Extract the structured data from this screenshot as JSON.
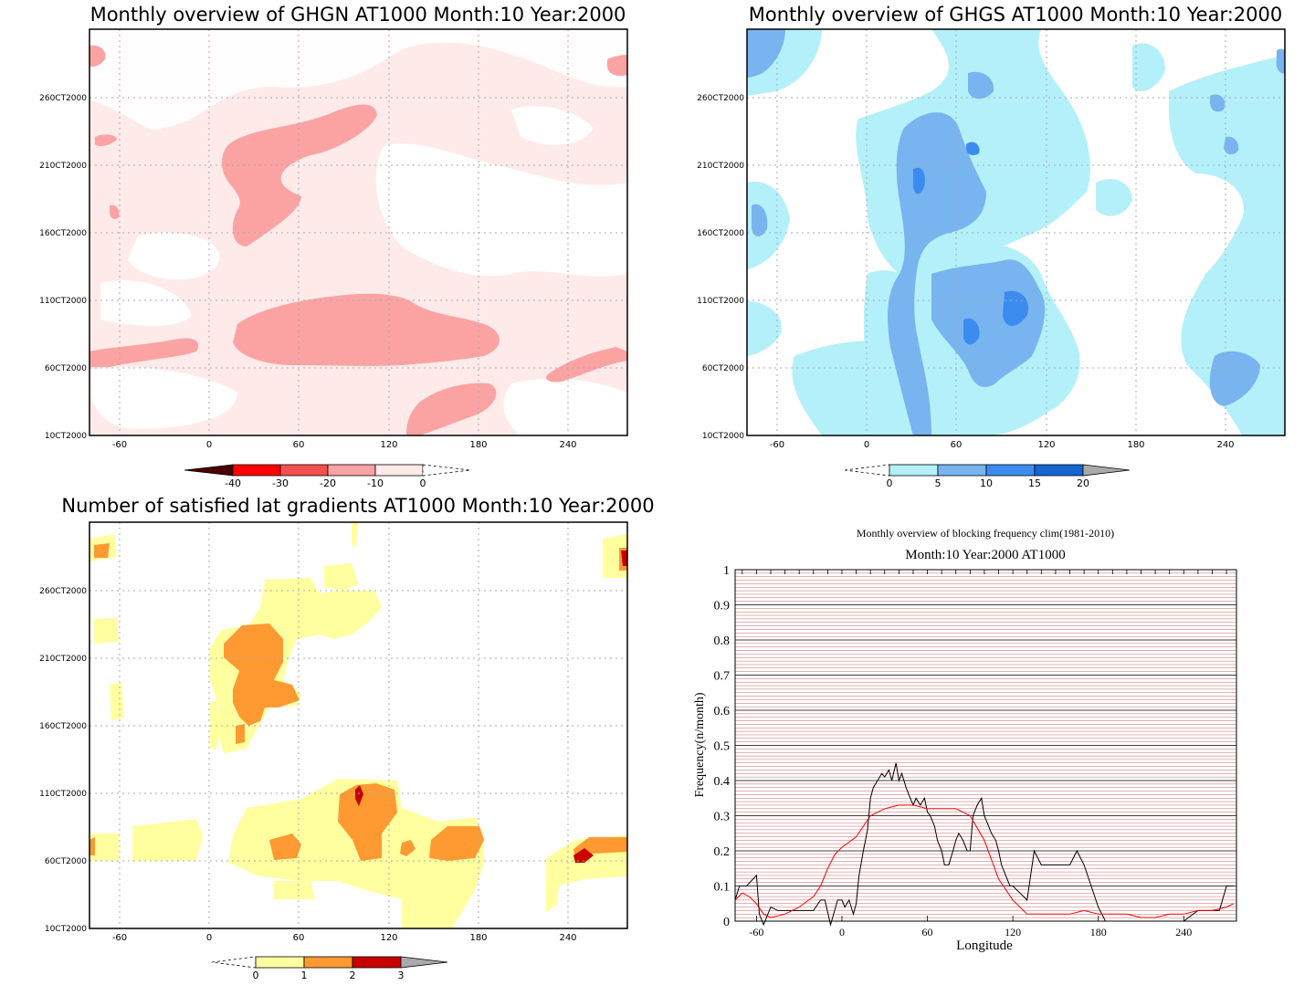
{
  "panels": {
    "ghgn": {
      "title": "Monthly overview of GHGN AT1000 Month:10 Year:2000",
      "y_ticks": [
        "260CT2000",
        "210CT2000",
        "160CT2000",
        "110CT2000",
        "60CT2000",
        "10CT2000"
      ],
      "x_ticks": [
        "-60",
        "0",
        "60",
        "120",
        "180",
        "240"
      ],
      "colorbar": {
        "labels": [
          "-40",
          "-30",
          "-20",
          "-10",
          "0"
        ],
        "colors": [
          "#b3000b",
          "#ff0000",
          "#f25050",
          "#fba3a3",
          "#ffeaea"
        ]
      }
    },
    "ghgs": {
      "title": "Monthly overview of GHGS AT1000 Month:10 Year:2000",
      "y_ticks": [
        "260CT2000",
        "210CT2000",
        "160CT2000",
        "110CT2000",
        "60CT2000",
        "10CT2000"
      ],
      "x_ticks": [
        "-60",
        "0",
        "60",
        "120",
        "180",
        "240"
      ],
      "colorbar": {
        "labels": [
          "0",
          "5",
          "10",
          "15",
          "20"
        ],
        "colors": [
          "#b4f0fa",
          "#78b4f0",
          "#3c8cf0",
          "#1464d2"
        ]
      }
    },
    "gradients": {
      "title": "Number of satisfied lat gradients AT1000 Month:10 Year:2000",
      "y_ticks": [
        "260CT2000",
        "210CT2000",
        "160CT2000",
        "110CT2000",
        "60CT2000",
        "10CT2000"
      ],
      "x_ticks": [
        "-60",
        "0",
        "60",
        "120",
        "180",
        "240"
      ],
      "colorbar": {
        "labels": [
          "0",
          "1",
          "2",
          "3"
        ],
        "colors": [
          "#ffffa0",
          "#ff9932",
          "#c80000"
        ]
      }
    },
    "blocking": {
      "title": "Monthly overview of blocking frequency clim(1981-2010)",
      "subtitle": "Month:10 Year:2000  AT1000"
    }
  },
  "chart_data": [
    {
      "type": "heatmap",
      "title": "Monthly overview of GHGN AT1000 Month:10 Year:2000",
      "x_ticks": [
        -60,
        0,
        60,
        120,
        180,
        240
      ],
      "y_ticks": [
        "10CT2000",
        "60CT2000",
        "110CT2000",
        "160CT2000",
        "210CT2000",
        "260CT2000"
      ],
      "colorbar_levels": [
        -40,
        -30,
        -20,
        -10,
        0
      ]
    },
    {
      "type": "heatmap",
      "title": "Monthly overview of GHGS AT1000 Month:10 Year:2000",
      "x_ticks": [
        -60,
        0,
        60,
        120,
        180,
        240
      ],
      "y_ticks": [
        "10CT2000",
        "60CT2000",
        "110CT2000",
        "160CT2000",
        "210CT2000",
        "260CT2000"
      ],
      "colorbar_levels": [
        0,
        5,
        10,
        15,
        20
      ]
    },
    {
      "type": "heatmap",
      "title": "Number of satisfied lat gradients AT1000 Month:10 Year:2000",
      "x_ticks": [
        -60,
        0,
        60,
        120,
        180,
        240
      ],
      "y_ticks": [
        "10CT2000",
        "60CT2000",
        "110CT2000",
        "160CT2000",
        "210CT2000",
        "260CT2000"
      ],
      "colorbar_levels": [
        0,
        1,
        2,
        3
      ]
    },
    {
      "type": "line",
      "title": "Monthly overview of blocking frequency clim(1981-2010)",
      "subtitle": "Month:10 Year:2000  AT1000",
      "xlabel": "Longitude",
      "ylabel": "Frequency(n/month)",
      "xlim": [
        -75,
        277
      ],
      "ylim": [
        0,
        1
      ],
      "x_ticks": [
        -60,
        0,
        60,
        120,
        180,
        240
      ],
      "y_ticks": [
        0,
        0.1,
        0.2,
        0.3,
        0.4,
        0.5,
        0.6,
        0.7,
        0.8,
        0.9,
        1
      ],
      "series": [
        {
          "color": "#000000",
          "x": [
            -75,
            -72,
            -67,
            -60,
            -58,
            -55,
            -50,
            -45,
            -40,
            -30,
            -20,
            -15,
            -12,
            -8,
            -3,
            0,
            2,
            5,
            8,
            10,
            12,
            15,
            18,
            20,
            22,
            25,
            28,
            30,
            33,
            35,
            38,
            40,
            42,
            45,
            48,
            50,
            52,
            55,
            58,
            60,
            62,
            65,
            67,
            70,
            72,
            75,
            78,
            80,
            82,
            85,
            88,
            90,
            92,
            95,
            98,
            100,
            103,
            105,
            108,
            110,
            112,
            115,
            118,
            120,
            125,
            130,
            135,
            140,
            145,
            150,
            155,
            160,
            165,
            170,
            175,
            180,
            185,
            190,
            200,
            210,
            220,
            225,
            230,
            235,
            240,
            250,
            260,
            265,
            270,
            275
          ],
          "y": [
            0.06,
            0.1,
            0.1,
            0.13,
            0.02,
            -0.01,
            0.04,
            0.03,
            0.03,
            0.03,
            0.03,
            0.06,
            0.06,
            -0.01,
            0.06,
            0.06,
            0.04,
            0.06,
            0.02,
            0.05,
            0.13,
            0.2,
            0.26,
            0.35,
            0.38,
            0.4,
            0.42,
            0.41,
            0.43,
            0.4,
            0.45,
            0.4,
            0.42,
            0.38,
            0.35,
            0.33,
            0.35,
            0.33,
            0.35,
            0.31,
            0.3,
            0.27,
            0.23,
            0.2,
            0.16,
            0.16,
            0.2,
            0.23,
            0.25,
            0.23,
            0.2,
            0.2,
            0.3,
            0.33,
            0.35,
            0.3,
            0.27,
            0.25,
            0.23,
            0.2,
            0.16,
            0.13,
            0.1,
            0.1,
            0.08,
            0.06,
            0.2,
            0.16,
            0.16,
            0.16,
            0.16,
            0.16,
            0.2,
            0.16,
            0.1,
            0.04,
            0.0,
            0.0,
            0.0,
            0.0,
            0.0,
            0.0,
            0.0,
            0.0,
            0.0,
            0.03,
            0.03,
            0.03,
            0.1,
            0.1
          ]
        },
        {
          "color": "#ff0000",
          "x": [
            -75,
            -70,
            -65,
            -60,
            -55,
            -50,
            -40,
            -30,
            -20,
            -15,
            -10,
            -5,
            0,
            10,
            20,
            30,
            40,
            50,
            60,
            70,
            80,
            90,
            100,
            110,
            120,
            130,
            140,
            150,
            160,
            170,
            180,
            190,
            200,
            210,
            220,
            230,
            240,
            250,
            260,
            270,
            275
          ],
          "y": [
            0.06,
            0.08,
            0.07,
            0.05,
            0.02,
            0.01,
            0.02,
            0.04,
            0.07,
            0.1,
            0.15,
            0.19,
            0.21,
            0.24,
            0.3,
            0.32,
            0.33,
            0.33,
            0.32,
            0.32,
            0.32,
            0.3,
            0.23,
            0.12,
            0.06,
            0.02,
            0.02,
            0.02,
            0.02,
            0.03,
            0.02,
            0.02,
            0.02,
            0.01,
            0.01,
            0.02,
            0.02,
            0.03,
            0.03,
            0.04,
            0.05
          ]
        }
      ]
    }
  ]
}
